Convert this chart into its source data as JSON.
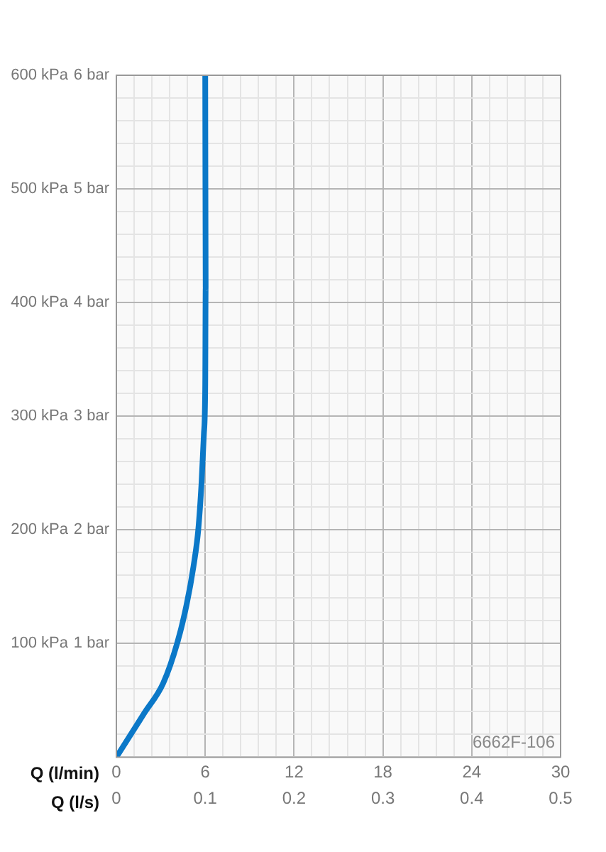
{
  "chart_data": {
    "type": "line",
    "xlabel": "Q (l/min)",
    "x2label": "Q (l/s)",
    "series": [
      {
        "color": "#0b78c8",
        "x": [
          0,
          1.9,
          3.16,
          4.1,
          4.74,
          5.21,
          5.53,
          5.75,
          5.91,
          6.0,
          6.03,
          6.0
        ],
        "values": [
          0,
          39,
          65,
          100,
          134,
          168,
          200,
          241,
          284,
          327,
          413,
          600
        ]
      }
    ],
    "xlim": [
      0,
      30
    ],
    "xticks": [
      0,
      {
        "value": 1.2,
        "label": null
      },
      {
        "value": 2.4,
        "label": null
      },
      {
        "value": 3.6,
        "label": null
      },
      {
        "value": 4.8,
        "label": null
      },
      6,
      {
        "value": 7.2,
        "label": null
      },
      {
        "value": 8.4,
        "label": null
      },
      {
        "value": 9.6,
        "label": null
      },
      {
        "value": 10.8,
        "label": null
      },
      12,
      {
        "value": 13.2,
        "label": null
      },
      {
        "value": 14.4,
        "label": null
      },
      {
        "value": 15.6,
        "label": null
      },
      {
        "value": 16.8,
        "label": null
      },
      18,
      {
        "value": 19.2,
        "label": null
      },
      {
        "value": 20.4,
        "label": null
      },
      {
        "value": 21.6,
        "label": null
      },
      {
        "value": 22.8,
        "label": null
      },
      24,
      {
        "value": 25.2,
        "label": null
      },
      {
        "value": 26.4,
        "label": null
      },
      {
        "value": 27.6,
        "label": null
      },
      {
        "value": 28.8,
        "label": null
      },
      30
    ],
    "x2lim": [
      0,
      0.5
    ],
    "x2ticks": [
      0,
      0.1,
      0.2,
      0.3,
      0.4,
      0.5
    ],
    "y2lim": [
      0,
      6
    ],
    "y2ticks": [
      {
        "value": 1,
        "label": "1 bar"
      },
      {
        "value": 2,
        "label": "2 bar"
      },
      {
        "value": 3,
        "label": "3 bar"
      },
      {
        "value": 4,
        "label": "4 bar"
      },
      {
        "value": 5,
        "label": "5 bar"
      },
      {
        "value": 6,
        "label": "6 bar"
      }
    ],
    "ylim": [
      0,
      600
    ],
    "yticks": [
      {
        "value": 0,
        "label": null
      },
      {
        "value": 20,
        "label": null
      },
      {
        "value": 40,
        "label": null
      },
      {
        "value": 60,
        "label": null
      },
      {
        "value": 80,
        "label": null
      },
      {
        "value": 100,
        "label": "100 kPa"
      },
      {
        "value": 120,
        "label": null
      },
      {
        "value": 140,
        "label": null
      },
      {
        "value": 160,
        "label": null
      },
      {
        "value": 180,
        "label": null
      },
      {
        "value": 200,
        "label": "200 kPa"
      },
      {
        "value": 220,
        "label": null
      },
      {
        "value": 240,
        "label": null
      },
      {
        "value": 260,
        "label": null
      },
      {
        "value": 280,
        "label": null
      },
      {
        "value": 300,
        "label": "300 kPa"
      },
      {
        "value": 320,
        "label": null
      },
      {
        "value": 340,
        "label": null
      },
      {
        "value": 360,
        "label": null
      },
      {
        "value": 380,
        "label": null
      },
      {
        "value": 400,
        "label": "400 kPa"
      },
      {
        "value": 420,
        "label": null
      },
      {
        "value": 440,
        "label": null
      },
      {
        "value": 460,
        "label": null
      },
      {
        "value": 480,
        "label": null
      },
      {
        "value": 500,
        "label": "500 kPa"
      },
      {
        "value": 520,
        "label": null
      },
      {
        "value": 540,
        "label": null
      },
      {
        "value": 560,
        "label": null
      },
      {
        "value": 580,
        "label": null
      },
      {
        "value": 600,
        "label": "600 kPa"
      }
    ],
    "grid": true,
    "legend": false,
    "marker": "none",
    "line_style": "solid",
    "annotations": [
      "6662F-106"
    ]
  }
}
